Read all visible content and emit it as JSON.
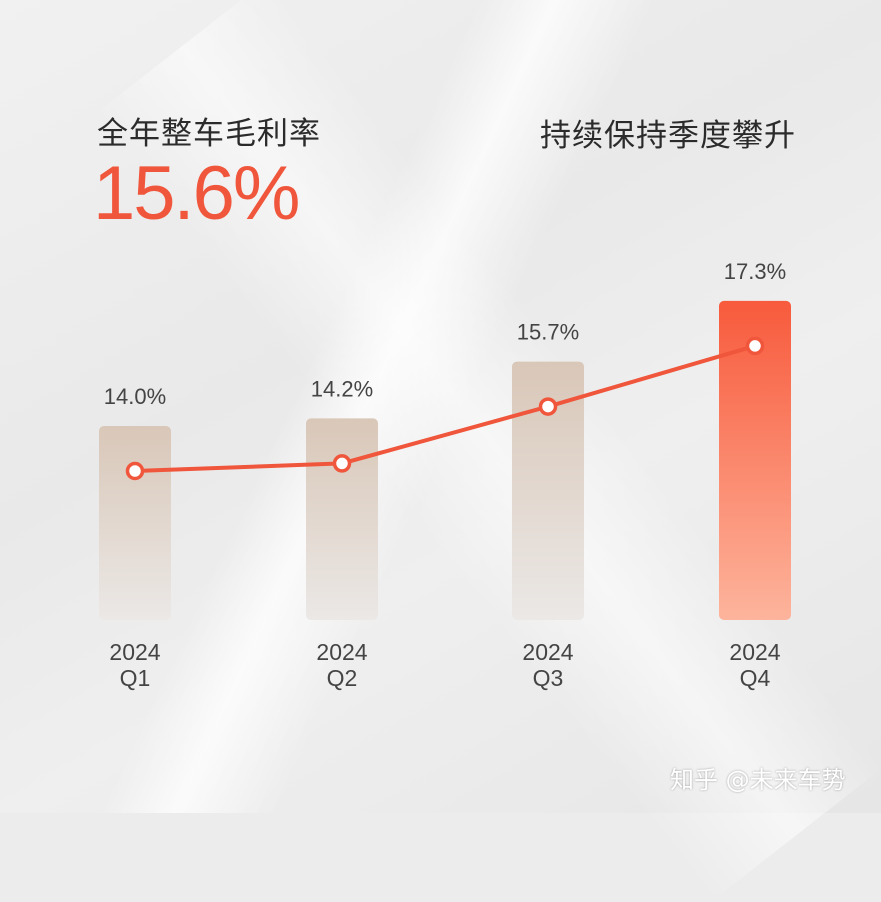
{
  "header": {
    "title": "全年整车毛利率",
    "annual_value": "15.6%",
    "subtitle": "持续保持季度攀升"
  },
  "chart_data": {
    "type": "bar",
    "categories": [
      [
        "2024",
        "Q1"
      ],
      [
        "2024",
        "Q2"
      ],
      [
        "2024",
        "Q3"
      ],
      [
        "2024",
        "Q4"
      ]
    ],
    "values": [
      14.0,
      14.2,
      15.7,
      17.3
    ],
    "data_labels": [
      "14.0%",
      "14.2%",
      "15.7%",
      "17.3%"
    ],
    "overlay_line": true,
    "highlight_index": 3,
    "colors": {
      "bar_default_top": "#d9c7b8",
      "bar_default_bottom": "#ebe8e6",
      "bar_highlight_top": "#f85a3c",
      "bar_highlight_bottom": "#fdb49c",
      "line": "#f0563b",
      "label_text": "#444444"
    }
  },
  "watermark": "知乎 @未来车势"
}
